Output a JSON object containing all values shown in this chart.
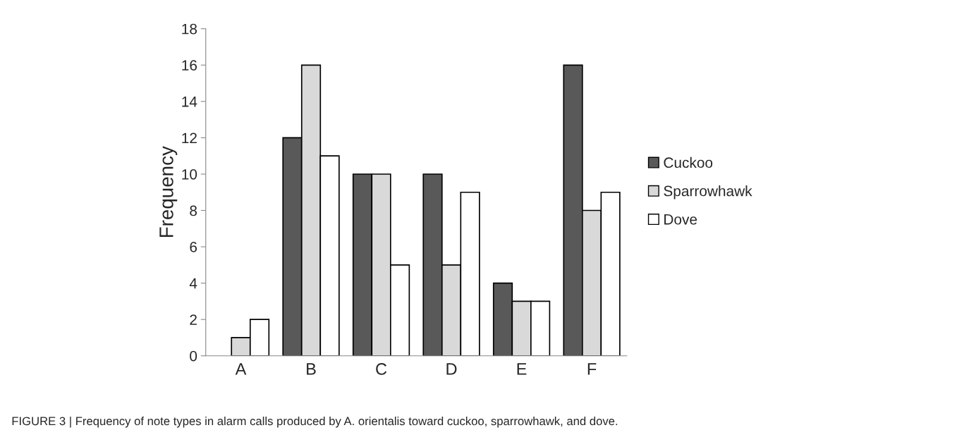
{
  "chart_data": {
    "type": "bar",
    "ylabel": "Frequency",
    "categories": [
      "A",
      "B",
      "C",
      "D",
      "E",
      "F"
    ],
    "series": [
      {
        "name": "Cuckoo",
        "color": "#595959",
        "values": [
          0,
          12,
          10,
          10,
          4,
          16
        ]
      },
      {
        "name": "Sparrowhawk",
        "color": "#d9d9d9",
        "values": [
          1,
          16,
          10,
          5,
          3,
          8
        ]
      },
      {
        "name": "Dove",
        "color": "#ffffff",
        "values": [
          2,
          11,
          5,
          9,
          3,
          9
        ]
      }
    ],
    "ylim": [
      0,
      18
    ],
    "yticks": [
      0,
      2,
      4,
      6,
      8,
      10,
      12,
      14,
      16,
      18
    ],
    "grid": false,
    "legend": "right",
    "annotations": [
      "FIGURE 3 | Frequency of note types in alarm calls produced by A. orientalis toward cuckoo, sparrowhawk, and dove."
    ]
  }
}
